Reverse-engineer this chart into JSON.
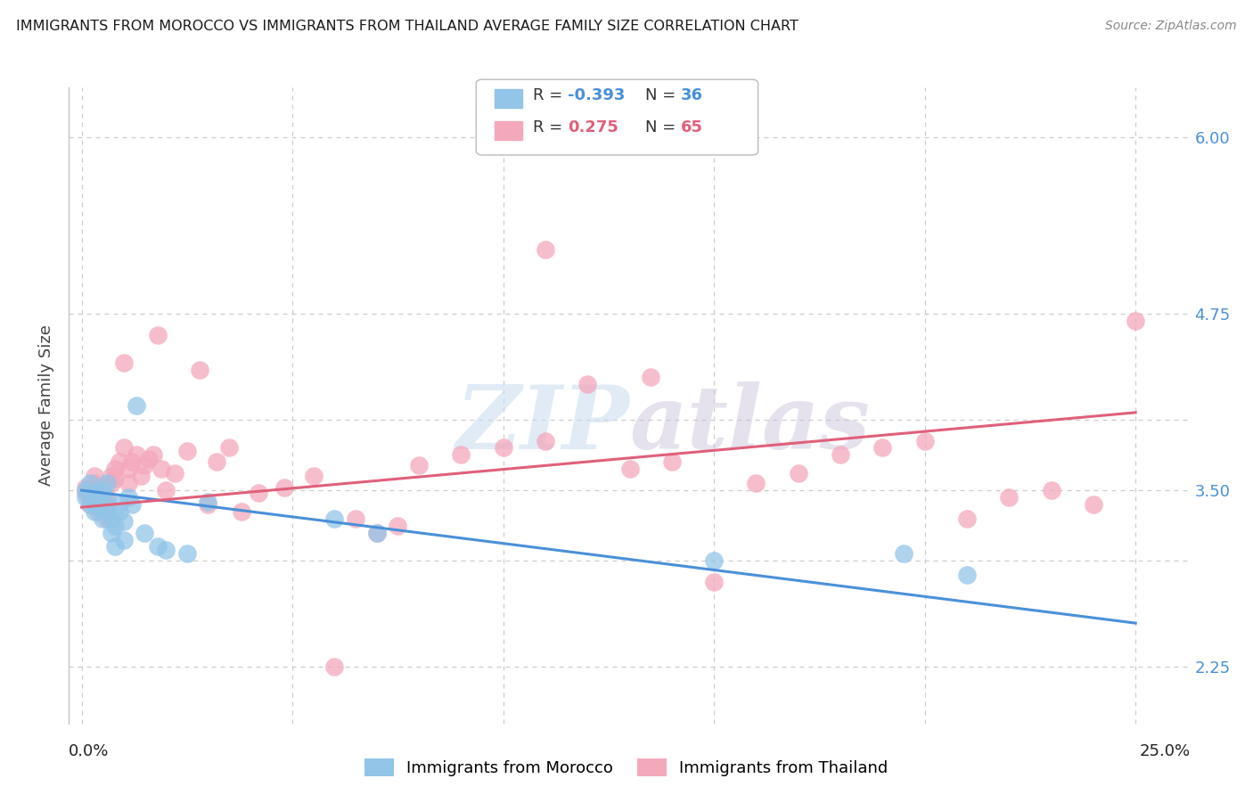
{
  "title": "IMMIGRANTS FROM MOROCCO VS IMMIGRANTS FROM THAILAND AVERAGE FAMILY SIZE CORRELATION CHART",
  "source": "Source: ZipAtlas.com",
  "ylabel": "Average Family Size",
  "ymin": 1.85,
  "ymax": 6.35,
  "xmin": -0.003,
  "xmax": 0.263,
  "watermark": "ZIPAtlas",
  "morocco_color": "#92c5e8",
  "thailand_color": "#f4a8bc",
  "morocco_line_color": "#4a90d9",
  "thailand_line_color": "#e0607a",
  "background_color": "#ffffff",
  "grid_color": "#cccccc",
  "right_yticks": [
    2.25,
    3.5,
    4.75,
    6.0
  ],
  "hgrid_vals": [
    2.25,
    3.0,
    3.5,
    4.0,
    4.75,
    6.0
  ],
  "vgrid_vals": [
    0.0,
    0.05,
    0.1,
    0.15,
    0.2,
    0.25
  ],
  "morocco_trendline_x": [
    0.0,
    0.25
  ],
  "morocco_trendline_y": [
    3.5,
    2.56
  ],
  "thailand_trendline_x": [
    0.0,
    0.25
  ],
  "thailand_trendline_y": [
    3.38,
    4.05
  ],
  "morocco_x": [
    0.001,
    0.001,
    0.002,
    0.002,
    0.003,
    0.003,
    0.003,
    0.004,
    0.004,
    0.005,
    0.005,
    0.005,
    0.006,
    0.006,
    0.006,
    0.007,
    0.007,
    0.008,
    0.008,
    0.009,
    0.009,
    0.01,
    0.01,
    0.011,
    0.012,
    0.013,
    0.015,
    0.018,
    0.02,
    0.025,
    0.03,
    0.06,
    0.07,
    0.15,
    0.195,
    0.21
  ],
  "morocco_y": [
    3.45,
    3.5,
    3.4,
    3.55,
    3.35,
    3.42,
    3.48,
    3.38,
    3.48,
    3.3,
    3.45,
    3.5,
    3.55,
    3.42,
    3.35,
    3.2,
    3.3,
    3.25,
    3.1,
    3.35,
    3.4,
    3.15,
    3.28,
    3.45,
    3.4,
    4.1,
    3.2,
    3.1,
    3.08,
    3.05,
    3.42,
    3.3,
    3.2,
    3.0,
    3.05,
    2.9
  ],
  "thailand_x": [
    0.001,
    0.001,
    0.002,
    0.002,
    0.003,
    0.003,
    0.004,
    0.004,
    0.005,
    0.005,
    0.006,
    0.006,
    0.006,
    0.007,
    0.007,
    0.008,
    0.008,
    0.009,
    0.01,
    0.01,
    0.011,
    0.011,
    0.012,
    0.013,
    0.014,
    0.015,
    0.016,
    0.017,
    0.018,
    0.019,
    0.02,
    0.022,
    0.025,
    0.028,
    0.03,
    0.032,
    0.035,
    0.038,
    0.042,
    0.048,
    0.055,
    0.06,
    0.065,
    0.07,
    0.075,
    0.08,
    0.09,
    0.1,
    0.11,
    0.12,
    0.13,
    0.14,
    0.15,
    0.16,
    0.17,
    0.18,
    0.19,
    0.2,
    0.21,
    0.22,
    0.23,
    0.24,
    0.25,
    0.135,
    0.11
  ],
  "thailand_y": [
    3.48,
    3.52,
    3.4,
    3.45,
    3.55,
    3.6,
    3.35,
    3.5,
    3.38,
    3.42,
    3.3,
    3.45,
    3.4,
    3.55,
    3.6,
    3.65,
    3.58,
    3.7,
    3.8,
    4.4,
    3.55,
    3.65,
    3.7,
    3.75,
    3.6,
    3.68,
    3.72,
    3.75,
    4.6,
    3.65,
    3.5,
    3.62,
    3.78,
    4.35,
    3.4,
    3.7,
    3.8,
    3.35,
    3.48,
    3.52,
    3.6,
    2.25,
    3.3,
    3.2,
    3.25,
    3.68,
    3.75,
    3.8,
    3.85,
    4.25,
    3.65,
    3.7,
    2.85,
    3.55,
    3.62,
    3.75,
    3.8,
    3.85,
    3.3,
    3.45,
    3.5,
    3.4,
    4.7,
    4.3,
    5.2
  ]
}
